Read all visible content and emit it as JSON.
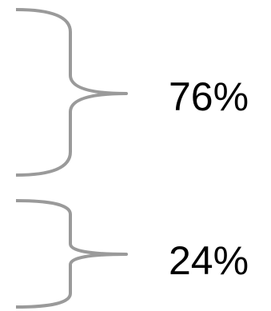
{
  "segments": [
    {
      "label": "76%",
      "value": 76
    },
    {
      "label": "24%",
      "value": 24
    }
  ],
  "brace_color": "#9a9a9a",
  "text_color": "#000000"
}
